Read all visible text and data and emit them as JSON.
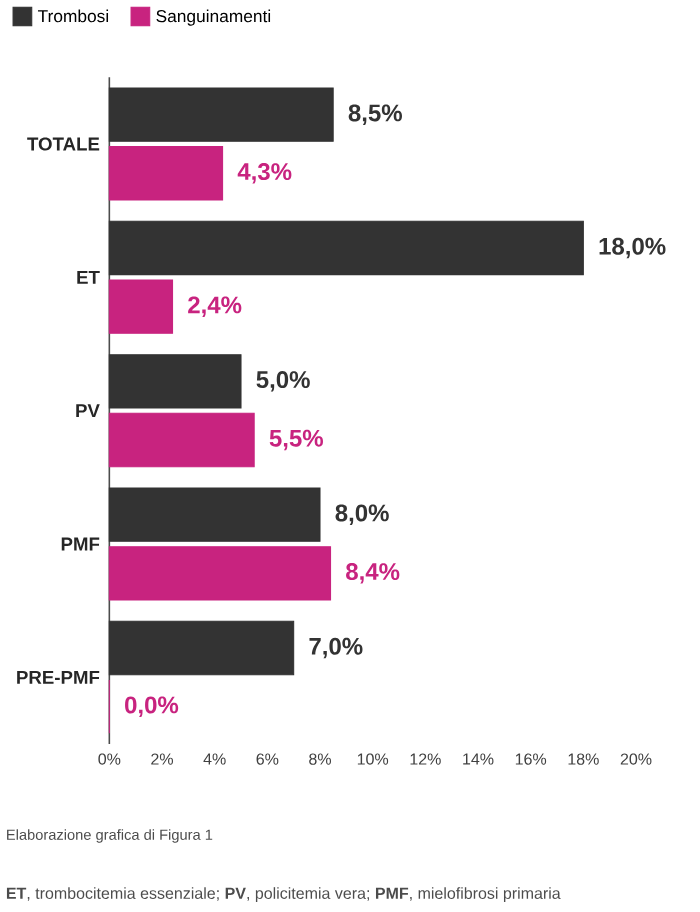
{
  "chart_data": {
    "type": "bar",
    "orientation": "horizontal",
    "categories": [
      "TOTALE",
      "ET",
      "PV",
      "PMF",
      "PRE-PMF"
    ],
    "series": [
      {
        "name": "Trombosi",
        "color": "#333333",
        "values": [
          8.5,
          18.0,
          5.0,
          8.0,
          7.0
        ],
        "value_labels": [
          "8,5%",
          "18,0%",
          "5,0%",
          "8,0%",
          "7,0%"
        ]
      },
      {
        "name": "Sanguinamenti",
        "color": "#c8237f",
        "values": [
          4.3,
          2.4,
          5.5,
          8.4,
          0.0
        ],
        "value_labels": [
          "4,3%",
          "2,4%",
          "5,5%",
          "8,4%",
          "0,0%"
        ]
      }
    ],
    "xlim": [
      0,
      20
    ],
    "xticks": [
      {
        "value": 0,
        "label": "0%"
      },
      {
        "value": 2,
        "label": "2%"
      },
      {
        "value": 4,
        "label": "4%"
      },
      {
        "value": 6,
        "label": "6%"
      },
      {
        "value": 8,
        "label": "8%"
      },
      {
        "value": 10,
        "label": "10%"
      },
      {
        "value": 12,
        "label": "12%"
      },
      {
        "value": 14,
        "label": "14%"
      },
      {
        "value": 16,
        "label": "16%"
      },
      {
        "value": 18,
        "label": "18%"
      },
      {
        "value": 20,
        "label": "20%"
      }
    ],
    "legend": "top left",
    "annotations": [
      "Elaborazione grafica di Figura 1",
      "**ET**, trombocitemia essenziale; **PV**, policitemia vera; **PMF**, mielofibrosi primaria"
    ]
  }
}
